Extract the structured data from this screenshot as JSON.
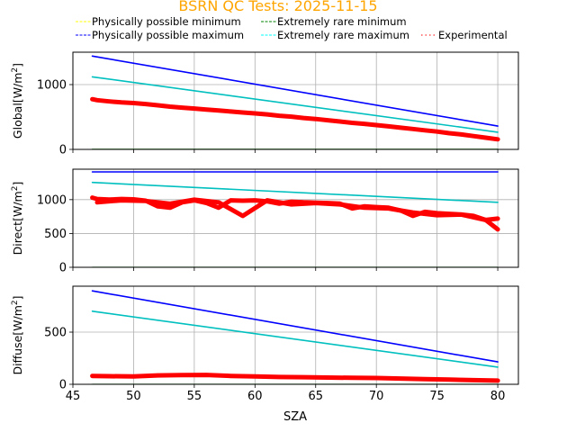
{
  "chart_data": {
    "type": "line",
    "title": "BSRN QC Tests: 2025-11-15",
    "title_color": "#ffa500",
    "xlabel": "SZA",
    "xlim": [
      45,
      81.7
    ],
    "xticks": [
      45,
      50,
      55,
      60,
      65,
      70,
      75,
      80
    ],
    "grid": true,
    "legend": {
      "placement": "top",
      "entries": [
        {
          "label": "Physically possible minimum",
          "color": "#ffff00",
          "style": "dashed"
        },
        {
          "label": "Physically possible maximum",
          "color": "#0000ff",
          "style": "dashed"
        },
        {
          "label": "Extremely rare minimum",
          "color": "#008000",
          "style": "dashed"
        },
        {
          "label": "Extremely rare maximum",
          "color": "#00ffff",
          "style": "dashed"
        },
        {
          "label": "Experimental",
          "color": "#ff0000",
          "style": "dotted"
        }
      ]
    },
    "panels": [
      {
        "name": "global",
        "ylabel": "Global[W/m²]",
        "ylim": [
          0,
          1500
        ],
        "yticks": [
          0,
          1000
        ],
        "series": [
          {
            "name": "Physically possible minimum",
            "color": "#ffff00",
            "x": [
              46.6,
              80
            ],
            "values": [
              -4,
              -4
            ]
          },
          {
            "name": "Extremely rare minimum",
            "color": "#008000",
            "x": [
              46.6,
              80
            ],
            "values": [
              -2,
              -2
            ]
          },
          {
            "name": "Physically possible maximum",
            "color": "#0000ff",
            "x": [
              46.6,
              80
            ],
            "values": [
              1440,
              360
            ]
          },
          {
            "name": "Extremely rare maximum",
            "color": "#00bfbf",
            "x": [
              46.6,
              80
            ],
            "values": [
              1120,
              265
            ]
          },
          {
            "name": "Experimental",
            "color": "#ff0000",
            "x": [
              46.6,
              47,
              48,
              49,
              50,
              51,
              52,
              53,
              54,
              55,
              56,
              57,
              58,
              59,
              60,
              61,
              62,
              63,
              64,
              65,
              66,
              67,
              68,
              69,
              70,
              71,
              72,
              73,
              74,
              75,
              76,
              77,
              78,
              79,
              80
            ],
            "values": [
              775,
              760,
              740,
              725,
              715,
              700,
              680,
              660,
              645,
              630,
              615,
              600,
              585,
              570,
              555,
              540,
              520,
              505,
              485,
              470,
              450,
              430,
              410,
              395,
              375,
              355,
              335,
              315,
              295,
              275,
              250,
              230,
              205,
              180,
              155
            ]
          }
        ]
      },
      {
        "name": "direct",
        "ylabel": "Direct[W/m²]",
        "ylim": [
          0,
          1450
        ],
        "yticks": [
          0,
          500,
          1000
        ],
        "series": [
          {
            "name": "Physically possible minimum",
            "color": "#ffff00",
            "x": [
              46.6,
              80
            ],
            "values": [
              -4,
              -4
            ]
          },
          {
            "name": "Extremely rare minimum",
            "color": "#008000",
            "x": [
              46.6,
              80
            ],
            "values": [
              -2,
              -2
            ]
          },
          {
            "name": "Physically possible maximum",
            "color": "#0000ff",
            "x": [
              46.6,
              80
            ],
            "values": [
              1410,
              1410
            ]
          },
          {
            "name": "Extremely rare maximum",
            "color": "#00bfbf",
            "x": [
              46.6,
              80
            ],
            "values": [
              1255,
              960
            ]
          },
          {
            "name": "Experimental",
            "color": "#ff0000",
            "x": [
              46.6,
              47,
              48,
              49,
              50,
              51,
              52,
              53,
              54,
              55,
              56,
              57,
              58,
              59,
              60,
              61,
              62,
              63,
              64,
              65,
              66,
              67,
              68,
              69,
              70,
              71,
              72,
              73,
              74,
              75,
              76,
              77,
              78,
              79,
              80
            ],
            "values": [
              1030,
              1010,
              1000,
              1010,
              1005,
              985,
              900,
              880,
              960,
              990,
              950,
              880,
              990,
              985,
              990,
              975,
              940,
              970,
              960,
              955,
              950,
              940,
              870,
              900,
              890,
              880,
              840,
              760,
              820,
              800,
              790,
              780,
              760,
              700,
              560
            ]
          },
          {
            "name": "Experimental (lower envelope)",
            "color": "#ff0000",
            "x": [
              47,
              49,
              51,
              53,
              55,
              57,
              59,
              61,
              63,
              65,
              67,
              69,
              71,
              73,
              75,
              77,
              79,
              80
            ],
            "values": [
              960,
              990,
              980,
              940,
              1000,
              960,
              760,
              990,
              930,
              950,
              930,
              880,
              870,
              810,
              770,
              780,
              700,
              720
            ]
          }
        ]
      },
      {
        "name": "diffuse",
        "ylabel": "Diffuse[W/m²]",
        "ylim": [
          0,
          940
        ],
        "yticks": [
          0,
          500
        ],
        "series": [
          {
            "name": "Physically possible minimum",
            "color": "#ffff00",
            "x": [
              46.6,
              80
            ],
            "values": [
              -4,
              -4
            ]
          },
          {
            "name": "Extremely rare minimum",
            "color": "#008000",
            "x": [
              46.6,
              80
            ],
            "values": [
              -2,
              -2
            ]
          },
          {
            "name": "Physically possible maximum",
            "color": "#0000ff",
            "x": [
              46.6,
              80
            ],
            "values": [
              895,
              215
            ]
          },
          {
            "name": "Extremely rare maximum",
            "color": "#00bfbf",
            "x": [
              46.6,
              80
            ],
            "values": [
              700,
              165
            ]
          },
          {
            "name": "Experimental",
            "color": "#ff0000",
            "x": [
              46.6,
              48,
              50,
              52,
              54,
              56,
              58,
              60,
              62,
              64,
              66,
              68,
              70,
              72,
              74,
              76,
              78,
              80
            ],
            "values": [
              80,
              78,
              75,
              85,
              88,
              90,
              80,
              75,
              70,
              68,
              65,
              62,
              60,
              55,
              50,
              45,
              40,
              35
            ]
          }
        ]
      }
    ]
  }
}
